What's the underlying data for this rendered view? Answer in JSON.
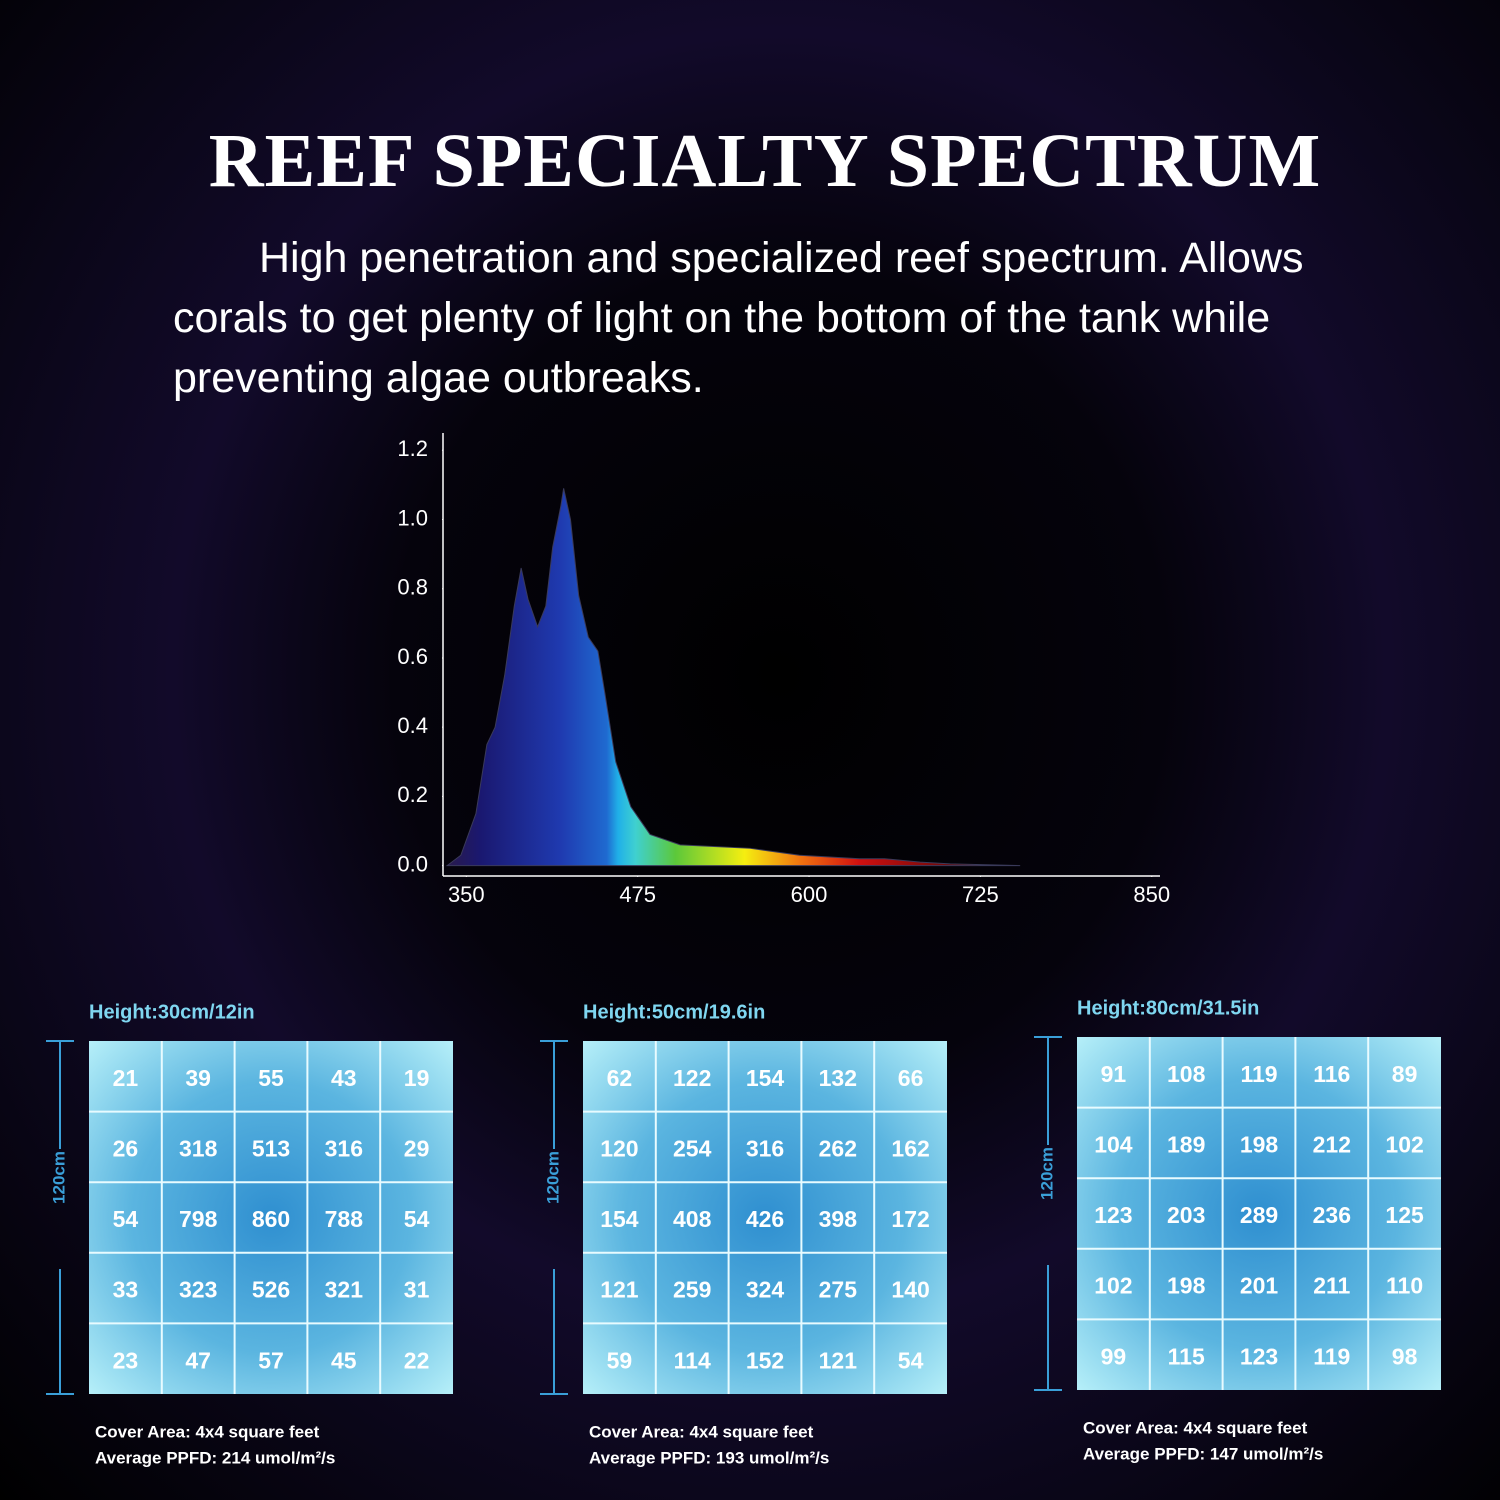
{
  "header": {
    "title": "REEF SPECIALTY SPECTRUM",
    "subtitle": "High penetration and specialized reef spectrum. Allows corals to get plenty of light on the bottom of the tank while preventing algae outbreaks."
  },
  "chart_data": {
    "type": "area",
    "x": [
      336,
      346,
      357,
      365,
      371,
      378,
      385,
      390,
      395,
      402,
      408,
      413,
      419,
      421,
      426,
      432,
      439,
      446,
      451,
      459,
      470,
      484,
      506,
      557,
      593,
      637,
      655,
      681,
      703,
      754
    ],
    "values": [
      0,
      0.03,
      0.15,
      0.35,
      0.4,
      0.55,
      0.75,
      0.86,
      0.77,
      0.69,
      0.75,
      0.92,
      1.04,
      1.09,
      1.0,
      0.78,
      0.66,
      0.62,
      0.5,
      0.3,
      0.17,
      0.09,
      0.06,
      0.05,
      0.03,
      0.02,
      0.02,
      0.01,
      0.005,
      0
    ],
    "xlim": [
      333,
      856
    ],
    "ylim": [
      -0.03,
      1.25
    ],
    "xticks": [
      350,
      475,
      600,
      725,
      850
    ],
    "yticks": [
      {
        "value": 0,
        "label": "0.0"
      },
      {
        "value": 0.2,
        "label": "0.2"
      },
      {
        "value": 0.4,
        "label": "0.4"
      },
      {
        "value": 0.6,
        "label": "0.6"
      },
      {
        "value": 0.8,
        "label": "0.8"
      },
      {
        "value": 1,
        "label": "1.0"
      },
      {
        "value": 1.2,
        "label": "1.2"
      }
    ]
  },
  "grids": [
    {
      "height": "Height:30cm/12in",
      "side": "120cm",
      "rows": [
        [
          21,
          39,
          55,
          43,
          19
        ],
        [
          26,
          318,
          513,
          316,
          29
        ],
        [
          54,
          798,
          860,
          788,
          54
        ],
        [
          33,
          323,
          526,
          321,
          31
        ],
        [
          23,
          47,
          57,
          45,
          22
        ]
      ],
      "cover": "Cover Area: 4x4 square feet",
      "average": "Average PPFD: 214 umol/m²/s"
    },
    {
      "height": "Height:50cm/19.6in",
      "side": "120cm",
      "rows": [
        [
          62,
          122,
          154,
          132,
          66
        ],
        [
          120,
          254,
          316,
          262,
          162
        ],
        [
          154,
          408,
          426,
          398,
          172
        ],
        [
          121,
          259,
          324,
          275,
          140
        ],
        [
          59,
          114,
          152,
          121,
          54
        ]
      ],
      "cover": "Cover Area: 4x4 square feet",
      "average": "Average PPFD: 193 umol/m²/s"
    },
    {
      "height": "Height:80cm/31.5in",
      "side": "120cm",
      "rows": [
        [
          91,
          108,
          119,
          116,
          89
        ],
        [
          104,
          189,
          198,
          212,
          102
        ],
        [
          123,
          203,
          289,
          236,
          125
        ],
        [
          102,
          198,
          201,
          211,
          110
        ],
        [
          99,
          115,
          123,
          119,
          98
        ]
      ],
      "cover": "Cover Area: 4x4 square feet",
      "average": "Average PPFD: 147 umol/m²/s"
    }
  ]
}
